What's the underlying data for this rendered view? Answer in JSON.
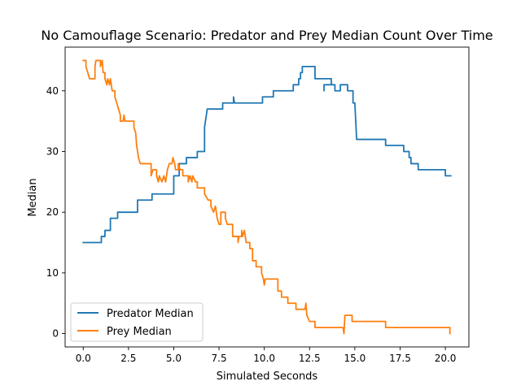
{
  "chart_data": {
    "type": "line",
    "title": "No Camouflage Scenario: Predator and Prey Median Count Over Time",
    "xlabel": "Simulated Seconds",
    "ylabel": "Median",
    "xlim": [
      -1.0,
      21.3
    ],
    "ylim": [
      -2.2,
      47.2
    ],
    "xticks": [
      0.0,
      2.5,
      5.0,
      7.5,
      10.0,
      12.5,
      15.0,
      17.5,
      20.0
    ],
    "xtick_labels": [
      "0.0",
      "2.5",
      "5.0",
      "7.5",
      "10.0",
      "12.5",
      "15.0",
      "17.5",
      "20.0"
    ],
    "yticks": [
      0,
      10,
      20,
      30,
      40
    ],
    "ytick_labels": [
      "0",
      "10",
      "20",
      "30",
      "40"
    ],
    "grid": false,
    "legend_position": "lower-left",
    "series": [
      {
        "name": "Predator Median",
        "color": "#1f77b4",
        "points": [
          [
            0.0,
            15
          ],
          [
            1.0,
            15
          ],
          [
            1.0,
            16
          ],
          [
            1.2,
            16
          ],
          [
            1.2,
            17
          ],
          [
            1.5,
            17
          ],
          [
            1.5,
            19
          ],
          [
            1.9,
            19
          ],
          [
            1.9,
            20
          ],
          [
            3.0,
            20
          ],
          [
            3.0,
            22
          ],
          [
            3.8,
            22
          ],
          [
            3.8,
            23
          ],
          [
            5.0,
            23
          ],
          [
            5.0,
            26
          ],
          [
            5.3,
            26
          ],
          [
            5.3,
            28
          ],
          [
            5.7,
            28
          ],
          [
            5.7,
            29
          ],
          [
            6.3,
            29
          ],
          [
            6.3,
            30
          ],
          [
            6.7,
            30
          ],
          [
            6.7,
            34
          ],
          [
            6.75,
            35
          ],
          [
            6.8,
            36
          ],
          [
            6.85,
            37
          ],
          [
            7.7,
            37
          ],
          [
            7.7,
            38
          ],
          [
            8.3,
            38
          ],
          [
            8.3,
            39
          ],
          [
            8.35,
            38
          ],
          [
            9.9,
            38
          ],
          [
            9.9,
            39
          ],
          [
            10.5,
            39
          ],
          [
            10.5,
            40
          ],
          [
            11.6,
            40
          ],
          [
            11.6,
            41
          ],
          [
            11.9,
            41
          ],
          [
            11.9,
            42
          ],
          [
            12.0,
            42
          ],
          [
            12.0,
            43
          ],
          [
            12.1,
            43
          ],
          [
            12.1,
            44
          ],
          [
            12.8,
            44
          ],
          [
            12.8,
            42
          ],
          [
            13.7,
            42
          ],
          [
            13.7,
            41
          ],
          [
            13.3,
            41
          ],
          [
            13.3,
            40
          ],
          [
            13.3,
            41
          ],
          [
            13.9,
            41
          ],
          [
            13.9,
            40
          ],
          [
            14.2,
            40
          ],
          [
            14.2,
            41
          ],
          [
            14.6,
            41
          ],
          [
            14.6,
            40
          ],
          [
            14.9,
            40
          ],
          [
            14.9,
            38
          ],
          [
            15.0,
            38
          ],
          [
            15.05,
            35
          ],
          [
            15.1,
            32
          ],
          [
            16.7,
            32
          ],
          [
            16.7,
            31
          ],
          [
            17.7,
            31
          ],
          [
            17.7,
            30
          ],
          [
            18.0,
            30
          ],
          [
            18.0,
            29
          ],
          [
            18.1,
            29
          ],
          [
            18.1,
            28
          ],
          [
            18.5,
            28
          ],
          [
            18.5,
            27
          ],
          [
            20.0,
            27
          ],
          [
            20.0,
            26
          ],
          [
            20.3,
            26
          ]
        ]
      },
      {
        "name": "Prey Median",
        "color": "#ff7f0e",
        "points": [
          [
            0.0,
            45
          ],
          [
            0.15,
            45
          ],
          [
            0.15,
            44
          ],
          [
            0.25,
            43
          ],
          [
            0.35,
            42
          ],
          [
            0.65,
            42
          ],
          [
            0.65,
            44
          ],
          [
            0.7,
            45
          ],
          [
            0.95,
            45
          ],
          [
            0.95,
            44
          ],
          [
            1.05,
            45
          ],
          [
            1.1,
            43
          ],
          [
            1.2,
            43
          ],
          [
            1.2,
            42
          ],
          [
            1.3,
            41
          ],
          [
            1.35,
            42
          ],
          [
            1.45,
            41
          ],
          [
            1.5,
            42
          ],
          [
            1.6,
            40
          ],
          [
            1.75,
            40
          ],
          [
            1.75,
            39
          ],
          [
            1.85,
            38
          ],
          [
            1.95,
            37
          ],
          [
            2.05,
            36
          ],
          [
            2.05,
            35
          ],
          [
            2.2,
            35
          ],
          [
            2.25,
            36
          ],
          [
            2.3,
            35
          ],
          [
            2.8,
            35
          ],
          [
            2.8,
            34
          ],
          [
            2.9,
            33
          ],
          [
            2.95,
            31
          ],
          [
            3.05,
            29
          ],
          [
            3.15,
            28
          ],
          [
            3.75,
            28
          ],
          [
            3.75,
            26
          ],
          [
            3.85,
            27
          ],
          [
            4.05,
            27
          ],
          [
            4.05,
            26
          ],
          [
            4.15,
            25
          ],
          [
            4.2,
            26
          ],
          [
            4.35,
            25
          ],
          [
            4.45,
            26
          ],
          [
            4.55,
            25
          ],
          [
            4.65,
            27
          ],
          [
            4.75,
            28
          ],
          [
            4.9,
            28
          ],
          [
            4.95,
            29
          ],
          [
            5.05,
            28
          ],
          [
            5.1,
            27
          ],
          [
            5.25,
            27
          ],
          [
            5.25,
            28
          ],
          [
            5.35,
            27
          ],
          [
            5.5,
            27
          ],
          [
            5.5,
            26
          ],
          [
            5.8,
            26
          ],
          [
            5.8,
            25
          ],
          [
            5.9,
            26
          ],
          [
            6.0,
            25
          ],
          [
            6.05,
            26
          ],
          [
            6.2,
            25
          ],
          [
            6.3,
            25
          ],
          [
            6.3,
            24
          ],
          [
            6.7,
            24
          ],
          [
            6.7,
            23
          ],
          [
            6.9,
            22
          ],
          [
            7.05,
            22
          ],
          [
            7.05,
            21
          ],
          [
            7.2,
            20
          ],
          [
            7.3,
            21
          ],
          [
            7.4,
            19
          ],
          [
            7.5,
            18
          ],
          [
            7.6,
            18
          ],
          [
            7.6,
            20
          ],
          [
            7.85,
            20
          ],
          [
            7.85,
            19
          ],
          [
            7.95,
            18
          ],
          [
            8.25,
            18
          ],
          [
            8.25,
            16
          ],
          [
            8.55,
            16
          ],
          [
            8.55,
            15
          ],
          [
            8.6,
            16
          ],
          [
            8.75,
            16
          ],
          [
            8.75,
            17
          ],
          [
            8.8,
            16
          ],
          [
            8.9,
            17
          ],
          [
            9.0,
            15
          ],
          [
            9.2,
            15
          ],
          [
            9.2,
            14
          ],
          [
            9.35,
            14
          ],
          [
            9.35,
            12
          ],
          [
            9.55,
            12
          ],
          [
            9.55,
            11
          ],
          [
            9.85,
            11
          ],
          [
            9.85,
            10
          ],
          [
            9.95,
            9
          ],
          [
            10.0,
            8
          ],
          [
            10.05,
            9
          ],
          [
            10.75,
            9
          ],
          [
            10.75,
            7
          ],
          [
            10.95,
            7
          ],
          [
            10.95,
            6
          ],
          [
            11.3,
            6
          ],
          [
            11.3,
            5
          ],
          [
            11.75,
            5
          ],
          [
            11.75,
            4
          ],
          [
            12.25,
            4
          ],
          [
            12.3,
            5
          ],
          [
            12.35,
            3
          ],
          [
            12.5,
            2
          ],
          [
            12.8,
            2
          ],
          [
            12.8,
            1
          ],
          [
            14.35,
            1
          ],
          [
            14.4,
            0
          ],
          [
            14.45,
            3
          ],
          [
            14.85,
            3
          ],
          [
            14.85,
            2
          ],
          [
            16.7,
            2
          ],
          [
            16.7,
            1
          ],
          [
            20.25,
            1
          ],
          [
            20.25,
            0
          ]
        ]
      }
    ]
  }
}
